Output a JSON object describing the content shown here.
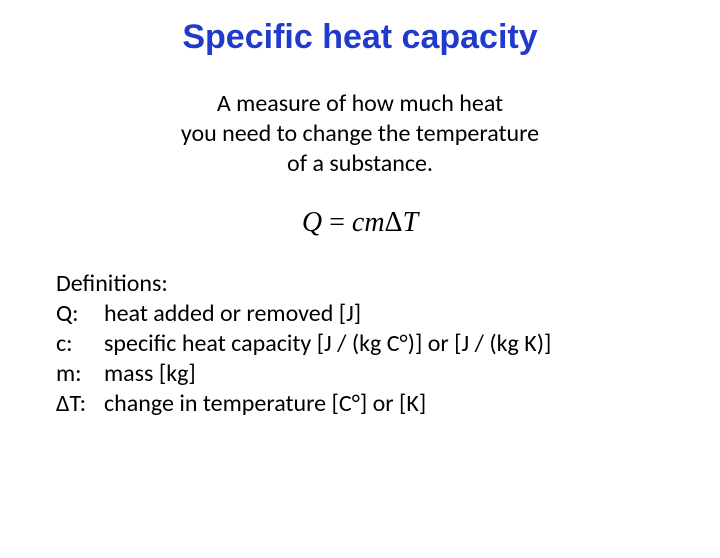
{
  "title": {
    "text": "Specific heat capacity",
    "color": "#1f3acc",
    "fontsize": 34
  },
  "subtitle": {
    "line1": "A measure of how much heat",
    "line2": "you need to change the temperature",
    "line3": "of a substance.",
    "color": "#000000",
    "fontsize": 24
  },
  "formula": {
    "Q": "Q",
    "eq": " = ",
    "c": "c",
    "m": "m",
    "delta": "Δ",
    "T": "T",
    "color": "#000000",
    "fontsize": 28
  },
  "definitions": {
    "heading": "Definitions:",
    "rows": [
      {
        "sym": "Q:",
        "desc": "heat added or removed [J]"
      },
      {
        "sym": "c:",
        "desc": "specific heat capacity [J / (kg C°)] or [J / (kg K)]"
      },
      {
        "sym": "m:",
        "desc": "mass [kg]"
      },
      {
        "sym": "ΔT:",
        "desc": "change in temperature [C°] or [K]"
      }
    ],
    "color": "#000000",
    "fontsize": 24
  }
}
